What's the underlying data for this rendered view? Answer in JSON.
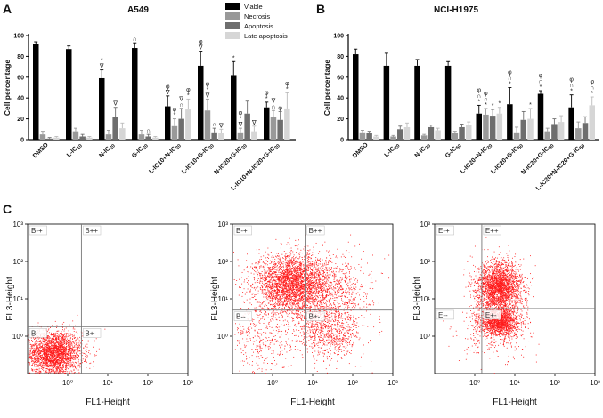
{
  "panel_labels": {
    "a": "A",
    "b": "B",
    "c": "C"
  },
  "chart_data": [
    {
      "type": "bar",
      "title": "A549",
      "ylabel": "Cell percentage",
      "ylim": [
        0,
        100
      ],
      "yticks": [
        "0",
        "20",
        "40",
        "60",
        "80",
        "100"
      ],
      "categories": [
        "DMSO",
        "L-IC10",
        "N-IC20",
        "G-IC20",
        "L-IC10+N-IC20",
        "L-IC10+G-IC20",
        "N-IC20+G-IC20",
        "L-IC10+N-IC20+G-IC20"
      ],
      "series": [
        {
          "name": "Viable",
          "color": "#000000",
          "values": [
            92,
            87,
            59,
            88,
            32,
            71,
            62,
            31
          ],
          "errors": [
            2,
            3,
            8,
            5,
            10,
            14,
            13,
            5
          ]
        },
        {
          "name": "Necrosis",
          "color": "#999999",
          "values": [
            5,
            8,
            5,
            5,
            13,
            28,
            7,
            22
          ],
          "errors": [
            3,
            3,
            4,
            4,
            7,
            11,
            4,
            6
          ]
        },
        {
          "name": "Apoptosis",
          "color": "#6e6e6e",
          "values": [
            1,
            3,
            22,
            3,
            20,
            7,
            25,
            19
          ],
          "errors": [
            1,
            2,
            9,
            2,
            10,
            4,
            12,
            8
          ]
        },
        {
          "name": "Late apoptosis",
          "color": "#d6d6d6",
          "values": [
            2,
            2,
            11,
            2,
            29,
            6,
            8,
            30
          ],
          "errors": [
            1,
            1,
            5,
            1,
            10,
            4,
            5,
            15
          ]
        }
      ],
      "annotations": [
        {
          "cat": 2,
          "series": 0,
          "text": "*∇"
        },
        {
          "cat": 2,
          "series": 2,
          "text": "∇"
        },
        {
          "cat": 3,
          "series": 0,
          "text": "∩"
        },
        {
          "cat": 3,
          "series": 2,
          "text": "∩"
        },
        {
          "cat": 4,
          "series": 0,
          "text": "φ∇"
        },
        {
          "cat": 4,
          "series": 1,
          "text": "φ*"
        },
        {
          "cat": 4,
          "series": 2,
          "text": "∇∩"
        },
        {
          "cat": 4,
          "series": 3,
          "text": "φ*"
        },
        {
          "cat": 5,
          "series": 0,
          "text": "φ∇"
        },
        {
          "cat": 5,
          "series": 1,
          "text": "φ*∇"
        },
        {
          "cat": 5,
          "series": 2,
          "text": "∩"
        },
        {
          "cat": 5,
          "series": 3,
          "text": "∇"
        },
        {
          "cat": 6,
          "series": 0,
          "text": "*"
        },
        {
          "cat": 6,
          "series": 1,
          "text": "φ*∇"
        },
        {
          "cat": 6,
          "series": 3,
          "text": "∇"
        },
        {
          "cat": 7,
          "series": 0,
          "text": "φ*"
        },
        {
          "cat": 7,
          "series": 1,
          "text": "∇∩"
        },
        {
          "cat": 7,
          "series": 2,
          "text": "φ"
        },
        {
          "cat": 7,
          "series": 3,
          "text": "φ*"
        }
      ],
      "legend": {
        "placement": "top-right",
        "entries": [
          "Viable",
          "Necrosis",
          "Apoptosis",
          "Late apoptosis"
        ]
      }
    },
    {
      "type": "bar",
      "title": "NCI-H1975",
      "ylabel": "Cell percentage",
      "ylim": [
        0,
        100
      ],
      "yticks": [
        "0",
        "20",
        "40",
        "60",
        "80",
        "100"
      ],
      "categories": [
        "DMSO",
        "L-IC20",
        "N-IC20",
        "G-IC50",
        "L-IC20+N-IC20",
        "L-IC20+G-IC50",
        "N-IC20+G-IC50",
        "L-IC20+N-IC20+G-IC50"
      ],
      "series": [
        {
          "name": "Viable",
          "color": "#000000",
          "values": [
            82,
            71,
            71,
            71,
            25,
            34,
            44,
            31
          ],
          "errors": [
            5,
            12,
            6,
            4,
            8,
            16,
            3,
            12
          ]
        },
        {
          "name": "Necrosis",
          "color": "#999999",
          "values": [
            7,
            3,
            4,
            6,
            24,
            7,
            8,
            11
          ],
          "errors": [
            2,
            1,
            1,
            2,
            6,
            5,
            3,
            6
          ]
        },
        {
          "name": "Apoptosis",
          "color": "#6e6e6e",
          "values": [
            6,
            10,
            12,
            12,
            23,
            19,
            15,
            16
          ],
          "errors": [
            2,
            3,
            2,
            3,
            6,
            8,
            5,
            6
          ]
        },
        {
          "name": "Late apoptosis",
          "color": "#d6d6d6",
          "values": [
            3,
            12,
            9,
            14,
            25,
            20,
            17,
            33
          ],
          "errors": [
            1,
            4,
            2,
            3,
            6,
            10,
            6,
            8
          ]
        }
      ],
      "annotations": [
        {
          "cat": 4,
          "series": 0,
          "text": "φ∩*"
        },
        {
          "cat": 4,
          "series": 1,
          "text": "φ∩*"
        },
        {
          "cat": 4,
          "series": 2,
          "text": "*"
        },
        {
          "cat": 4,
          "series": 3,
          "text": "*"
        },
        {
          "cat": 5,
          "series": 0,
          "text": "φ∩*"
        },
        {
          "cat": 5,
          "series": 3,
          "text": "*"
        },
        {
          "cat": 6,
          "series": 0,
          "text": "φ∩*"
        },
        {
          "cat": 7,
          "series": 0,
          "text": "φ∩*"
        },
        {
          "cat": 7,
          "series": 3,
          "text": "φ∩*"
        }
      ]
    },
    {
      "type": "scatter",
      "title": "",
      "xlabel": "FL1-Height",
      "ylabel": "FL3-Height",
      "xlim": [
        0.1,
        1000
      ],
      "ylim": [
        0.1,
        1000
      ],
      "scale": "log",
      "xticks": [
        "10⁰",
        "10¹",
        "10²",
        "10³"
      ],
      "yticks": [
        "10⁰",
        "10¹",
        "10²",
        "10³"
      ],
      "gates": {
        "x": 2.2,
        "y": 1.8
      },
      "quadrant_labels": [
        "B-+",
        "B++",
        "B--",
        "B+-"
      ],
      "populations": [
        {
          "cx": 0.45,
          "cy": 0.35,
          "sx": 0.35,
          "sy": 0.3,
          "n": 2600
        }
      ]
    },
    {
      "type": "scatter",
      "title": "",
      "xlabel": "FL1-Height",
      "ylabel": "FL3-Height",
      "xlim": [
        0.1,
        1000
      ],
      "ylim": [
        0.1,
        1000
      ],
      "scale": "log",
      "xticks": [
        "10⁰",
        "10¹",
        "10²",
        "10³"
      ],
      "yticks": [
        "10⁰",
        "10¹",
        "10²",
        "10³"
      ],
      "gates": {
        "x": 6.5,
        "y": 5.0
      },
      "quadrant_labels": [
        "B-+",
        "B++",
        "B--",
        "B+-"
      ],
      "populations": [
        {
          "cx": 3.0,
          "cy": 25,
          "sx": 0.45,
          "sy": 0.4,
          "n": 3200
        },
        {
          "cx": 25,
          "cy": 1.5,
          "sx": 0.4,
          "sy": 0.4,
          "n": 900
        },
        {
          "cx": 30,
          "cy": 20,
          "sx": 0.5,
          "sy": 0.45,
          "n": 700
        },
        {
          "cx": 0.6,
          "cy": 0.8,
          "sx": 0.45,
          "sy": 0.45,
          "n": 350
        }
      ]
    },
    {
      "type": "scatter",
      "title": "",
      "xlabel": "FL1-Height",
      "ylabel": "FL3-Height",
      "xlim": [
        0.1,
        1000
      ],
      "ylim": [
        0.1,
        1000
      ],
      "scale": "log",
      "xticks": [
        "10⁰",
        "10¹",
        "10²",
        "10³"
      ],
      "yticks": [
        "10⁰",
        "10¹",
        "10²",
        "10³"
      ],
      "gates": {
        "x": 1.5,
        "y": 5.5
      },
      "quadrant_labels": [
        "E-+",
        "E++",
        "E--",
        "E+-"
      ],
      "populations": [
        {
          "cx": 4.0,
          "cy": 20,
          "sx": 0.28,
          "sy": 0.35,
          "n": 2600
        },
        {
          "cx": 4.0,
          "cy": 2.5,
          "sx": 0.25,
          "sy": 0.18,
          "n": 1500
        },
        {
          "cx": 3.0,
          "cy": 1.0,
          "sx": 0.5,
          "sy": 0.4,
          "n": 250
        }
      ]
    }
  ]
}
